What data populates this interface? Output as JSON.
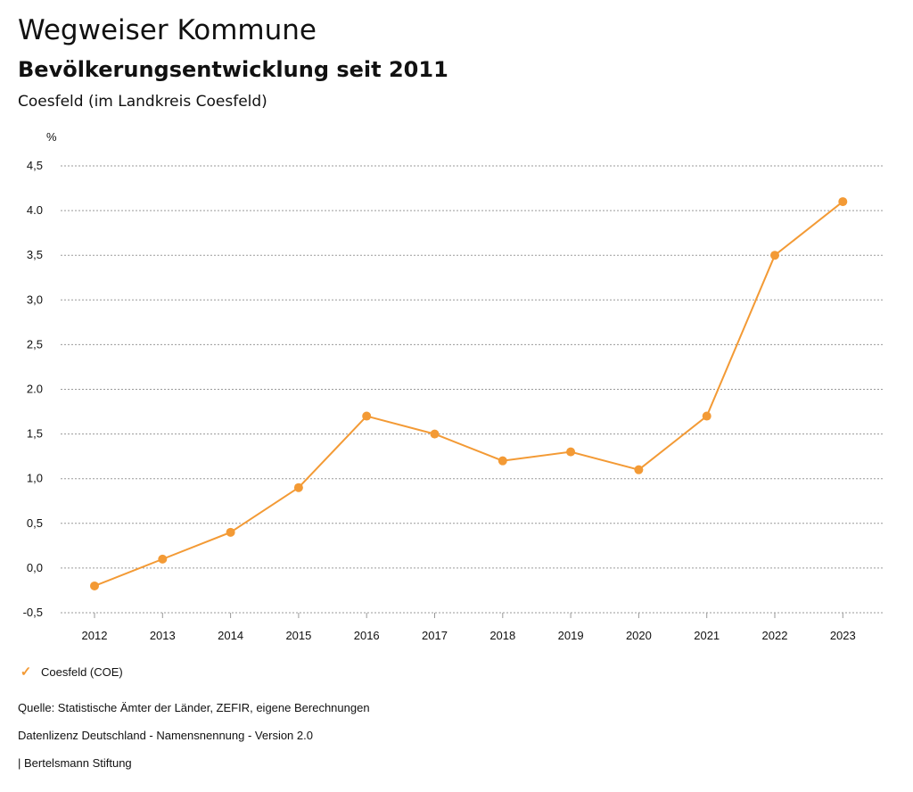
{
  "header": {
    "title": "Wegweiser Kommune",
    "subtitle": "Bevölkerungsentwicklung seit 2011",
    "region": "Coesfeld (im Landkreis Coesfeld)"
  },
  "chart_data": {
    "type": "line",
    "ylabel": "%",
    "xlabel": "",
    "categories": [
      "2012",
      "2013",
      "2014",
      "2015",
      "2016",
      "2017",
      "2018",
      "2019",
      "2020",
      "2021",
      "2022",
      "2023"
    ],
    "series": [
      {
        "name": "Coesfeld (COE)",
        "color": "#f39a35",
        "values": [
          -0.2,
          0.1,
          0.4,
          0.9,
          1.7,
          1.5,
          1.2,
          1.3,
          1.1,
          1.7,
          3.5,
          4.1
        ]
      }
    ],
    "yticks": [
      4.5,
      4.0,
      3.5,
      3.0,
      2.5,
      2.0,
      1.5,
      1.0,
      0.5,
      0.0,
      -0.5
    ],
    "ytick_labels": [
      "4,5",
      "4.0",
      "3,5",
      "3,0",
      "2,5",
      "2.0",
      "1,5",
      "1,0",
      "0,5",
      "0,0",
      "-0,5"
    ],
    "ylim": [
      -0.5,
      4.5
    ],
    "grid": true,
    "legend": "bottom-left"
  },
  "legend": {
    "label": "Coesfeld (COE)",
    "icon": "check-icon"
  },
  "footer": {
    "source": "Quelle: Statistische Ämter der Länder, ZEFIR, eigene Berechnungen",
    "license": "Datenlizenz Deutschland - Namensnennung - Version 2.0",
    "publisher": "| Bertelsmann Stiftung"
  }
}
